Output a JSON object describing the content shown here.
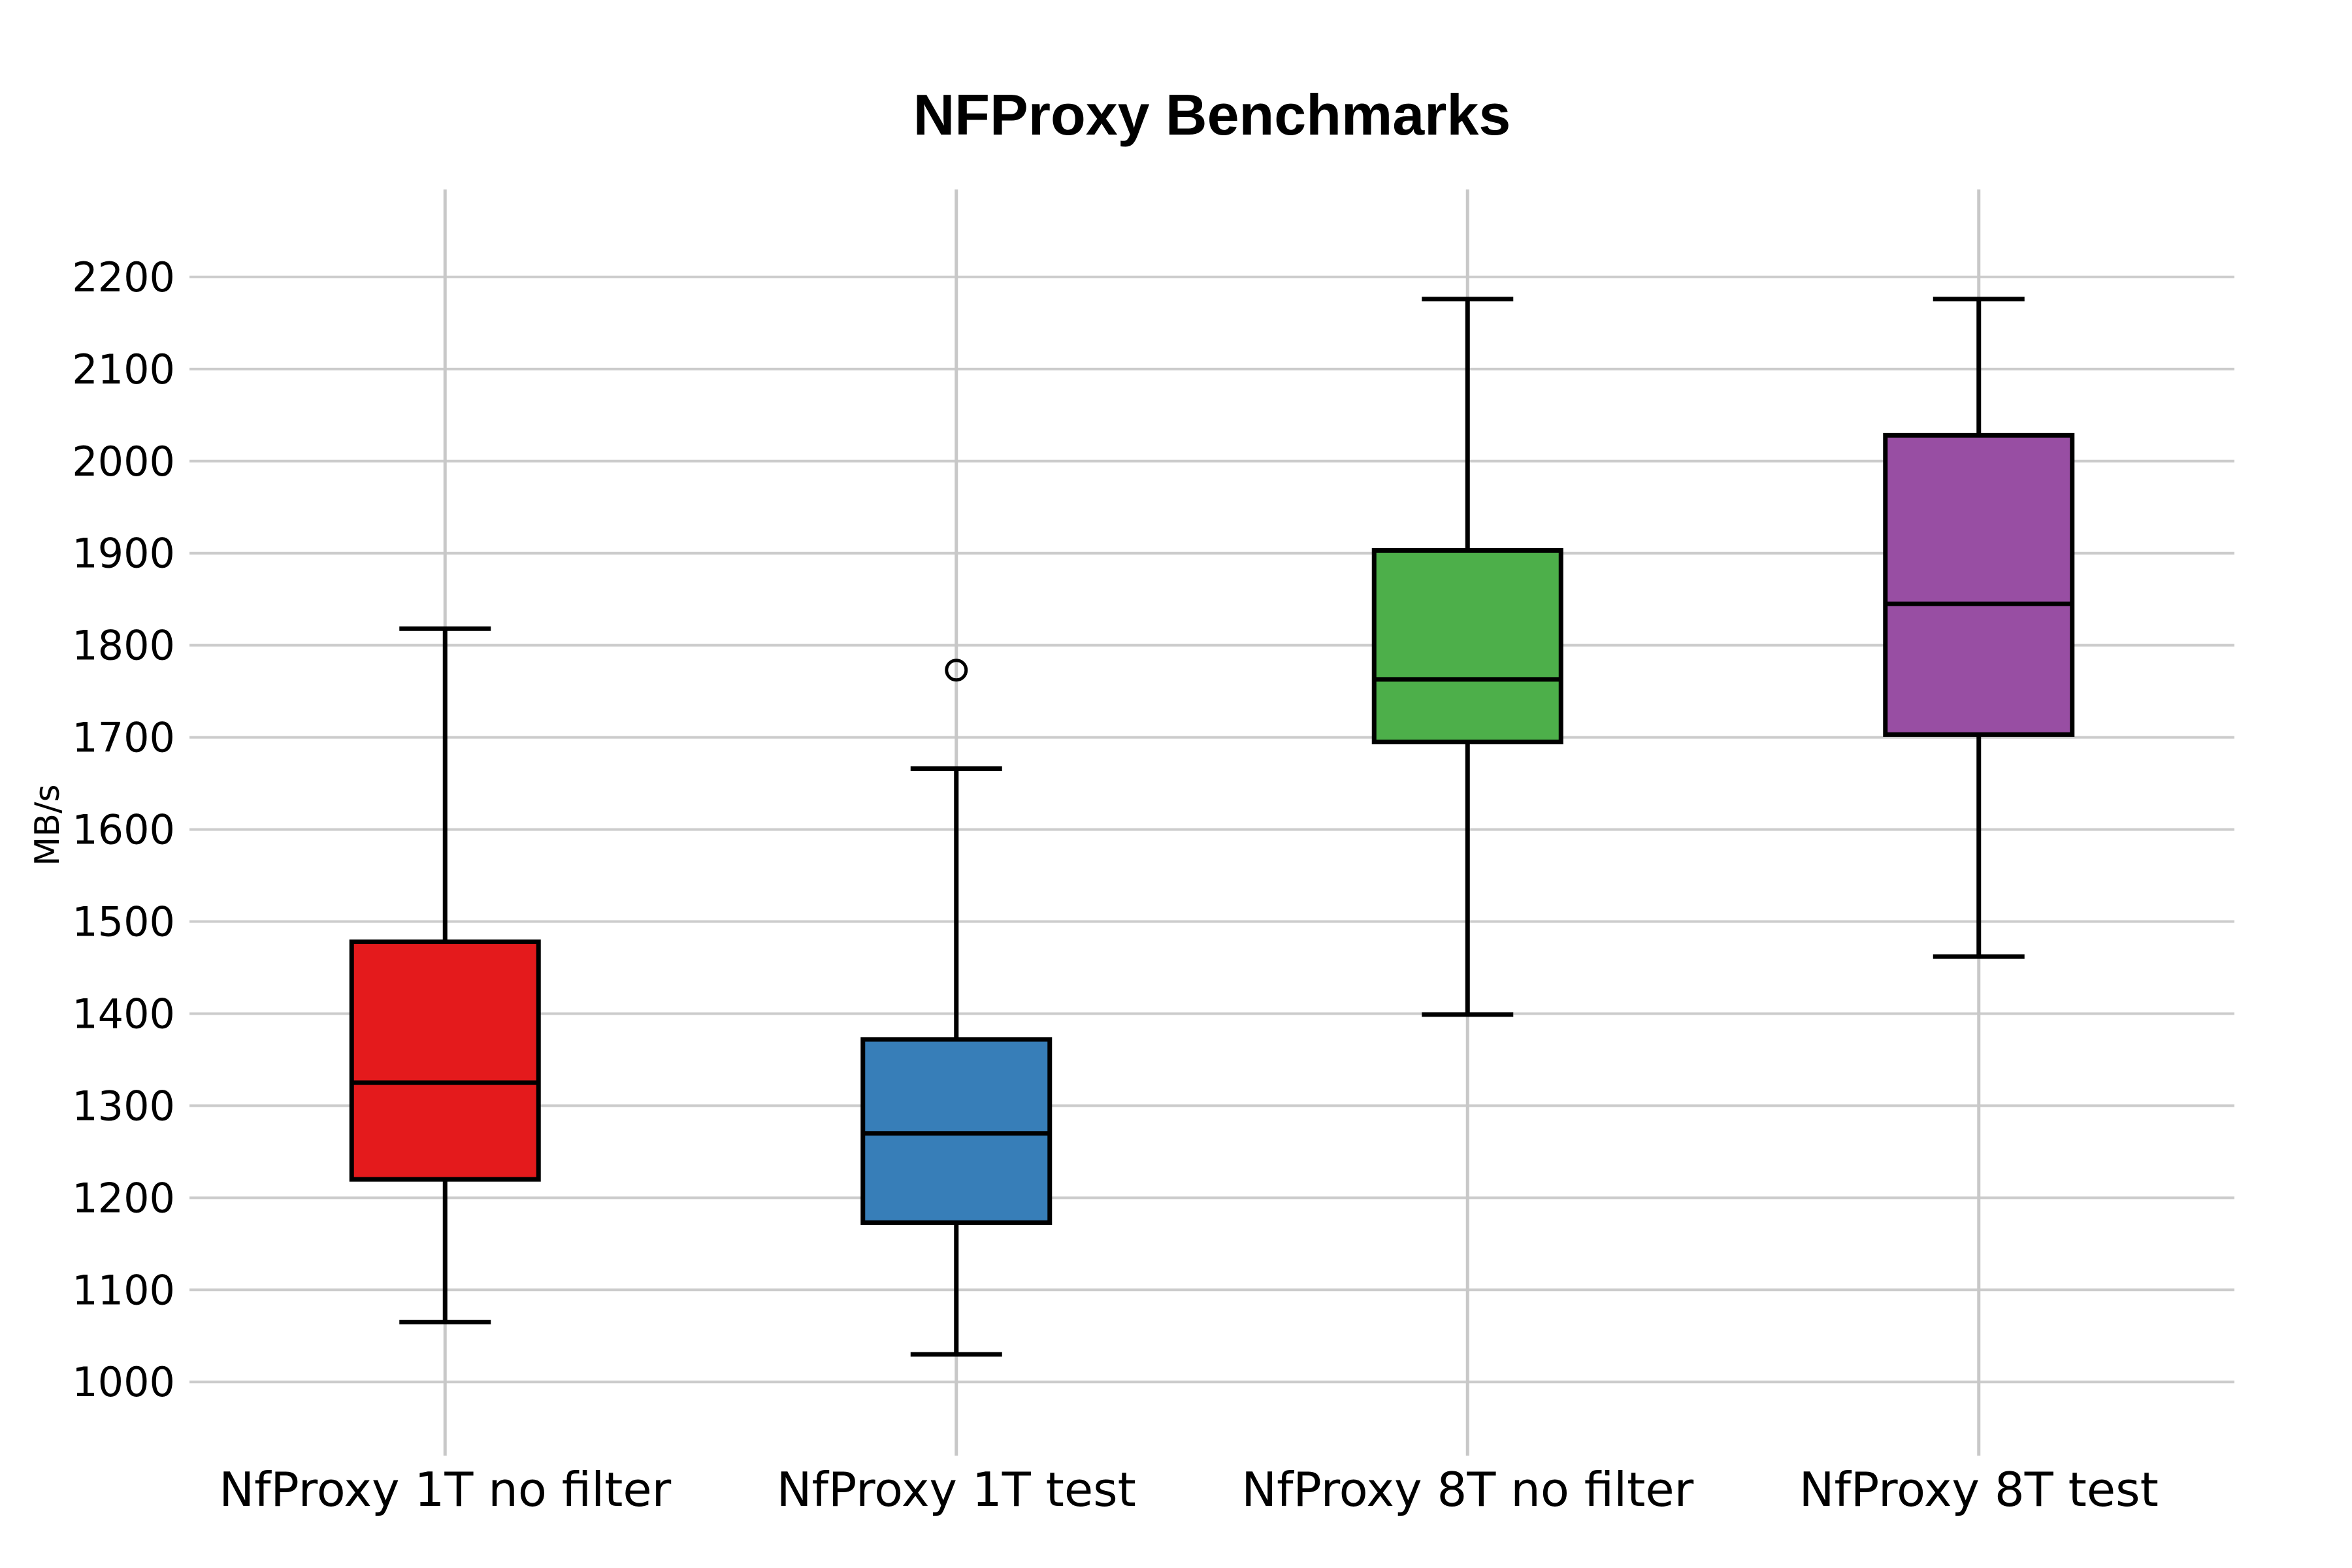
{
  "page": {
    "background": "#ffffff"
  },
  "chart_data": {
    "type": "boxplot",
    "title": "NFProxy Benchmarks",
    "ylabel": "MB/s",
    "xlabel": "",
    "categories": [
      "NfProxy 1T no filter",
      "NfProxy 1T test",
      "NfProxy 8T no filter",
      "NfProxy 8T test"
    ],
    "series": [
      {
        "name": "NfProxy 1T no filter",
        "color": "#e41a1c",
        "whisker_low": 1065,
        "q1": 1220,
        "median": 1325,
        "q3": 1478,
        "whisker_high": 1818,
        "outliers": []
      },
      {
        "name": "NfProxy 1T test",
        "color": "#377eb8",
        "whisker_low": 1030,
        "q1": 1173,
        "median": 1270,
        "q3": 1372,
        "whisker_high": 1666,
        "outliers": [
          1773
        ]
      },
      {
        "name": "NfProxy 8T no filter",
        "color": "#4daf4a",
        "whisker_low": 1399,
        "q1": 1695,
        "median": 1763,
        "q3": 1903,
        "whisker_high": 2176,
        "outliers": []
      },
      {
        "name": "NfProxy 8T test",
        "color": "#984ea3",
        "whisker_low": 1462,
        "q1": 1703,
        "median": 1845,
        "q3": 2028,
        "whisker_high": 2176,
        "outliers": []
      }
    ],
    "yticks": [
      1000,
      1100,
      1200,
      1300,
      1400,
      1500,
      1600,
      1700,
      1800,
      1900,
      2000,
      2100,
      2200
    ],
    "ylim": [
      920,
      2295
    ],
    "grid": true,
    "legend": "none",
    "gridline_color": "#cccccc",
    "vertical_gridline_color": "#c8c8c8",
    "box_edge_color": "#000000",
    "median_color": "#000000",
    "whisker_color": "#000000"
  }
}
